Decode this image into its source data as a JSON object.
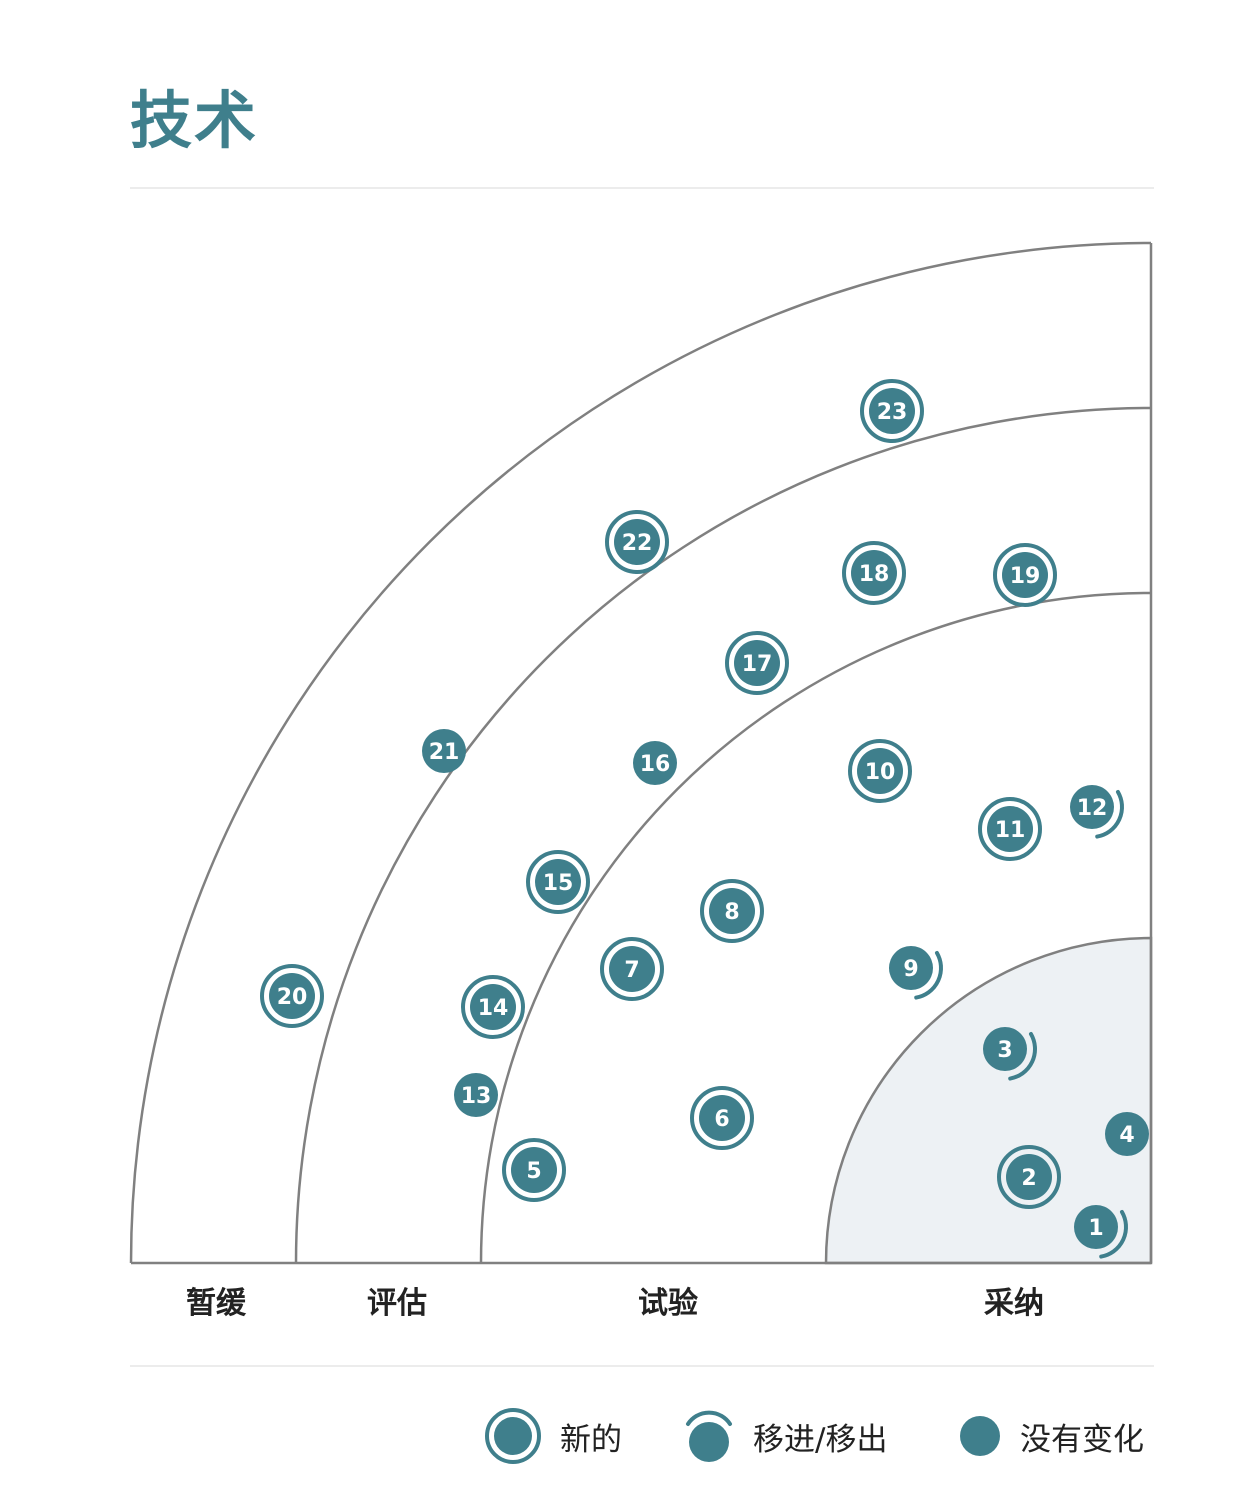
{
  "title": "技术",
  "rings": [
    {
      "key": "hold",
      "label": "暂缓"
    },
    {
      "key": "assess",
      "label": "评估"
    },
    {
      "key": "trial",
      "label": "试验"
    },
    {
      "key": "adopt",
      "label": "采纳"
    }
  ],
  "legend": [
    {
      "key": "new",
      "label": "新的"
    },
    {
      "key": "moved",
      "label": "移进/移出"
    },
    {
      "key": "unchanged",
      "label": "没有变化"
    }
  ],
  "colors": {
    "blip": "#3f7f8c",
    "title": "#3f7f8c",
    "ring_line": "#808080",
    "adopt_fill": "#edf1f4"
  },
  "blips": [
    {
      "n": "1",
      "status": "moved"
    },
    {
      "n": "2",
      "status": "new"
    },
    {
      "n": "3",
      "status": "moved"
    },
    {
      "n": "4",
      "status": "unchanged"
    },
    {
      "n": "5",
      "status": "new"
    },
    {
      "n": "6",
      "status": "new"
    },
    {
      "n": "7",
      "status": "new"
    },
    {
      "n": "8",
      "status": "new"
    },
    {
      "n": "9",
      "status": "moved"
    },
    {
      "n": "10",
      "status": "new"
    },
    {
      "n": "11",
      "status": "new"
    },
    {
      "n": "12",
      "status": "moved"
    },
    {
      "n": "13",
      "status": "unchanged"
    },
    {
      "n": "14",
      "status": "new"
    },
    {
      "n": "15",
      "status": "new"
    },
    {
      "n": "16",
      "status": "unchanged"
    },
    {
      "n": "17",
      "status": "new"
    },
    {
      "n": "18",
      "status": "new"
    },
    {
      "n": "19",
      "status": "new"
    },
    {
      "n": "20",
      "status": "new"
    },
    {
      "n": "21",
      "status": "unchanged"
    },
    {
      "n": "22",
      "status": "new"
    },
    {
      "n": "23",
      "status": "new"
    }
  ]
}
